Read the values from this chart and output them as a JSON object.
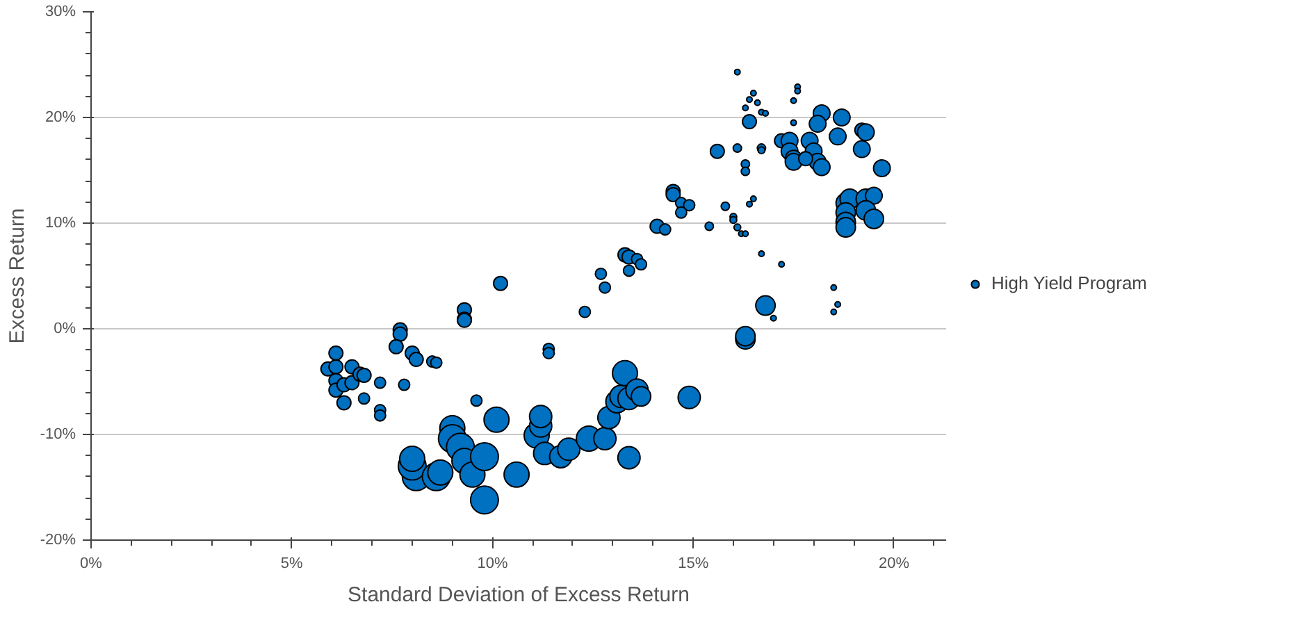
{
  "chart_data": {
    "type": "bubble",
    "xlabel": "Standard Deviation of Excess Return",
    "ylabel": "Excess Return",
    "xlim": [
      0,
      21.3
    ],
    "ylim": [
      -20,
      30
    ],
    "xticks": [
      {
        "value": 0,
        "label": "0%"
      },
      {
        "value": 1,
        "label": null
      },
      {
        "value": 2,
        "label": null
      },
      {
        "value": 3,
        "label": null
      },
      {
        "value": 4,
        "label": null
      },
      {
        "value": 5,
        "label": "5%"
      },
      {
        "value": 6,
        "label": null
      },
      {
        "value": 7,
        "label": null
      },
      {
        "value": 8,
        "label": null
      },
      {
        "value": 9,
        "label": null
      },
      {
        "value": 10,
        "label": "10%"
      },
      {
        "value": 11,
        "label": null
      },
      {
        "value": 12,
        "label": null
      },
      {
        "value": 13,
        "label": null
      },
      {
        "value": 14,
        "label": null
      },
      {
        "value": 15,
        "label": "15%"
      },
      {
        "value": 16,
        "label": null
      },
      {
        "value": 17,
        "label": null
      },
      {
        "value": 18,
        "label": null
      },
      {
        "value": 19,
        "label": null
      },
      {
        "value": 20,
        "label": "20%"
      },
      {
        "value": 21,
        "label": null
      }
    ],
    "yticks": [
      {
        "value": -20,
        "label": "-20%"
      },
      {
        "value": -18,
        "label": null
      },
      {
        "value": -16,
        "label": null
      },
      {
        "value": -14,
        "label": null
      },
      {
        "value": -12,
        "label": null
      },
      {
        "value": -10,
        "label": "-10%"
      },
      {
        "value": -8,
        "label": null
      },
      {
        "value": -6,
        "label": null
      },
      {
        "value": -4,
        "label": null
      },
      {
        "value": -2,
        "label": null
      },
      {
        "value": 0,
        "label": "0%"
      },
      {
        "value": 2,
        "label": null
      },
      {
        "value": 4,
        "label": null
      },
      {
        "value": 6,
        "label": null
      },
      {
        "value": 8,
        "label": null
      },
      {
        "value": 10,
        "label": "10%"
      },
      {
        "value": 12,
        "label": null
      },
      {
        "value": 14,
        "label": null
      },
      {
        "value": 16,
        "label": null
      },
      {
        "value": 18,
        "label": null
      },
      {
        "value": 20,
        "label": "20%"
      },
      {
        "value": 22,
        "label": null
      },
      {
        "value": 24,
        "label": null
      },
      {
        "value": 26,
        "label": null
      },
      {
        "value": 28,
        "label": null
      },
      {
        "value": 30,
        "label": "30%"
      }
    ],
    "grid": "y",
    "legend": "right",
    "marker": "circle",
    "series": [
      {
        "name": "High Yield Program",
        "color": "#0070c0",
        "x": [
          5.9,
          6.1,
          6.1,
          6.1,
          6.1,
          6.3,
          6.3,
          6.5,
          6.5,
          6.7,
          6.8,
          6.8,
          7.2,
          7.2,
          7.2,
          7.7,
          7.7,
          7.6,
          8.0,
          8.1,
          7.8,
          8.5,
          8.6,
          9.3,
          9.3,
          9.3,
          10.2,
          9.6,
          11.4,
          11.4,
          12.3,
          12.7,
          12.8,
          13.3,
          13.4,
          13.6,
          13.4,
          13.7,
          14.1,
          14.3,
          8.1,
          8.0,
          8.0,
          8.6,
          8.7,
          9.0,
          9.0,
          9.2,
          9.3,
          9.5,
          9.8,
          9.8,
          10.1,
          10.6,
          11.1,
          11.2,
          11.2,
          11.3,
          11.7,
          11.9,
          12.4,
          12.8,
          12.9,
          13.1,
          13.2,
          13.3,
          13.4,
          13.6,
          13.7,
          13.4,
          14.9,
          16.1,
          16.5,
          16.4,
          16.3,
          16.6,
          16.7,
          16.8,
          16.4,
          17.6,
          17.6,
          17.5,
          17.5,
          18.2,
          18.1,
          18.7,
          18.6,
          19.2,
          19.3,
          19.2,
          19.7,
          17.2,
          17.4,
          17.4,
          17.5,
          17.5,
          17.9,
          18.0,
          18.1,
          18.2,
          17.8,
          15.6,
          16.1,
          16.7,
          16.7,
          16.3,
          16.3,
          14.5,
          14.5,
          14.7,
          14.9,
          14.7,
          15.8,
          16.5,
          16.4,
          15.4,
          16.0,
          16.0,
          16.1,
          16.2,
          16.3,
          16.7,
          17.2,
          18.8,
          18.9,
          18.8,
          18.8,
          18.8,
          19.3,
          19.5,
          19.3,
          19.5,
          18.5,
          18.6,
          18.5,
          16.8,
          17.0,
          16.3,
          16.3
        ],
        "values": [
          -3.8,
          -2.3,
          -3.6,
          -4.9,
          -5.8,
          -5.3,
          -7.0,
          -3.6,
          -5.1,
          -4.3,
          -4.4,
          -6.6,
          -5.1,
          -7.7,
          -8.2,
          -0.1,
          -0.5,
          -1.7,
          -2.3,
          -2.9,
          -5.3,
          -3.1,
          -3.2,
          1.8,
          0.9,
          0.8,
          4.3,
          -6.8,
          -1.9,
          -2.3,
          1.6,
          5.2,
          3.9,
          7.0,
          6.8,
          6.6,
          5.5,
          6.1,
          9.7,
          9.4,
          -14.0,
          -13.0,
          -12.3,
          -14.0,
          -13.6,
          -9.4,
          -10.4,
          -11.2,
          -12.5,
          -13.8,
          -16.2,
          -12.1,
          -8.6,
          -13.8,
          -10.1,
          -9.2,
          -8.3,
          -11.8,
          -12.1,
          -11.4,
          -10.4,
          -10.4,
          -8.4,
          -6.9,
          -6.4,
          -4.2,
          -6.6,
          -5.8,
          -6.4,
          -12.2,
          -6.5,
          24.3,
          22.3,
          21.7,
          20.9,
          21.4,
          20.5,
          20.4,
          19.6,
          22.9,
          22.5,
          21.6,
          19.5,
          20.4,
          19.4,
          20.0,
          18.2,
          18.8,
          18.6,
          17.0,
          15.2,
          17.8,
          17.8,
          16.8,
          16.1,
          15.8,
          17.8,
          16.8,
          15.8,
          15.3,
          16.1,
          16.8,
          17.1,
          17.1,
          16.9,
          15.6,
          14.9,
          13.0,
          12.7,
          11.9,
          11.7,
          11.0,
          11.6,
          12.3,
          11.8,
          9.7,
          10.6,
          10.3,
          9.6,
          9.0,
          9.0,
          7.1,
          6.1,
          11.9,
          12.3,
          11.0,
          10.1,
          9.6,
          12.3,
          12.6,
          11.2,
          10.4,
          3.9,
          2.3,
          1.6,
          2.2,
          1.0,
          -1.0,
          -0.7
        ],
        "sizes": [
          0.25,
          0.25,
          0.25,
          0.25,
          0.25,
          0.25,
          0.25,
          0.25,
          0.25,
          0.25,
          0.25,
          0.16,
          0.16,
          0.16,
          0.16,
          0.25,
          0.25,
          0.25,
          0.25,
          0.25,
          0.16,
          0.16,
          0.16,
          0.25,
          0.25,
          0.25,
          0.25,
          0.16,
          0.16,
          0.16,
          0.16,
          0.16,
          0.16,
          0.25,
          0.25,
          0.16,
          0.16,
          0.16,
          0.25,
          0.16,
          1,
          1,
          0.81,
          1,
          0.81,
          0.81,
          1,
          1,
          0.81,
          0.81,
          1,
          1,
          0.81,
          0.81,
          0.81,
          0.64,
          0.64,
          0.64,
          0.64,
          0.64,
          0.81,
          0.64,
          0.64,
          0.64,
          0.64,
          0.81,
          0.64,
          0.64,
          0.49,
          0.64,
          0.64,
          0.04,
          0.04,
          0.04,
          0.04,
          0.04,
          0.04,
          0.04,
          0.25,
          0.04,
          0.04,
          0.04,
          0.04,
          0.36,
          0.36,
          0.36,
          0.36,
          0.25,
          0.36,
          0.36,
          0.36,
          0.25,
          0.36,
          0.36,
          0.36,
          0.36,
          0.36,
          0.36,
          0.36,
          0.36,
          0.25,
          0.25,
          0.09,
          0.09,
          0.06,
          0.09,
          0.09,
          0.25,
          0.25,
          0.16,
          0.16,
          0.16,
          0.09,
          0.04,
          0.04,
          0.09,
          0.06,
          0.06,
          0.06,
          0.04,
          0.04,
          0.04,
          0.04,
          0.49,
          0.49,
          0.49,
          0.49,
          0.49,
          0.49,
          0.36,
          0.49,
          0.49,
          0.04,
          0.04,
          0.04,
          0.49,
          0.04,
          0.49,
          0.49
        ]
      }
    ]
  }
}
